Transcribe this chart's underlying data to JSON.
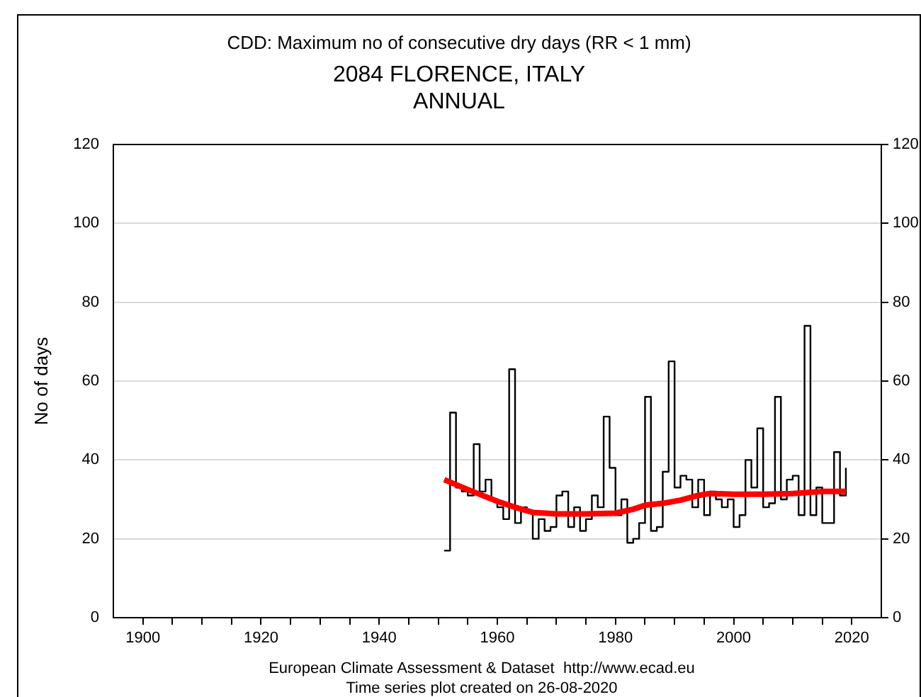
{
  "chart_data": {
    "type": "step",
    "title": "CDD: Maximum no of consecutive dry days (RR < 1 mm)",
    "subtitle": "2084 FLORENCE, ITALY\nANNUAL",
    "ylabel": "No of days",
    "x": [
      1951,
      1952,
      1953,
      1954,
      1955,
      1956,
      1957,
      1958,
      1959,
      1960,
      1961,
      1962,
      1963,
      1964,
      1965,
      1966,
      1967,
      1968,
      1969,
      1970,
      1971,
      1972,
      1973,
      1974,
      1975,
      1976,
      1977,
      1978,
      1979,
      1980,
      1981,
      1982,
      1983,
      1984,
      1985,
      1986,
      1987,
      1988,
      1989,
      1990,
      1991,
      1992,
      1993,
      1994,
      1995,
      1996,
      1997,
      1998,
      1999,
      2000,
      2001,
      2002,
      2003,
      2004,
      2005,
      2006,
      2007,
      2008,
      2009,
      2010,
      2011,
      2012,
      2013,
      2014,
      2015,
      2016,
      2017,
      2018,
      2019
    ],
    "series": [
      {
        "color": "#000000",
        "values": [
          17,
          52,
          33,
          32,
          31,
          44,
          32,
          35,
          30,
          28,
          25,
          63,
          24,
          28,
          27,
          20,
          25,
          22,
          23,
          31,
          32,
          23,
          28,
          22,
          25,
          31,
          28,
          51,
          38,
          26,
          30,
          19,
          20,
          24,
          56,
          22,
          23,
          37,
          65,
          33,
          36,
          35,
          28,
          35,
          26,
          32,
          30,
          28,
          30,
          23,
          26,
          40,
          33,
          48,
          28,
          29,
          56,
          30,
          35,
          36,
          26,
          74,
          26,
          33,
          24,
          24,
          42,
          31,
          38
        ]
      },
      {
        "type": "line",
        "color": "#ff0000",
        "x": [
          1951,
          1955,
          1960,
          1963,
          1966,
          1970,
          1975,
          1980,
          1983,
          1985,
          1988,
          1991,
          1994,
          1996,
          2000,
          2005,
          2010,
          2015,
          2019
        ],
        "values": [
          35,
          32.5,
          29.5,
          28,
          26.7,
          26.3,
          26.3,
          26.5,
          27.5,
          28.5,
          29,
          29.8,
          31,
          31.5,
          31.3,
          31.3,
          31.5,
          32,
          32
        ]
      }
    ],
    "xlim": [
      1895,
      2025
    ],
    "xticks": [
      {
        "value": 1900,
        "label": "1900"
      },
      {
        "value": 1905,
        "label": null
      },
      {
        "value": 1910,
        "label": null
      },
      {
        "value": 1915,
        "label": null
      },
      {
        "value": 1920,
        "label": "1920"
      },
      {
        "value": 1925,
        "label": null
      },
      {
        "value": 1930,
        "label": null
      },
      {
        "value": 1935,
        "label": null
      },
      {
        "value": 1940,
        "label": "1940"
      },
      {
        "value": 1945,
        "label": null
      },
      {
        "value": 1950,
        "label": null
      },
      {
        "value": 1955,
        "label": null
      },
      {
        "value": 1960,
        "label": "1960"
      },
      {
        "value": 1965,
        "label": null
      },
      {
        "value": 1970,
        "label": null
      },
      {
        "value": 1975,
        "label": null
      },
      {
        "value": 1980,
        "label": "1980"
      },
      {
        "value": 1985,
        "label": null
      },
      {
        "value": 1990,
        "label": null
      },
      {
        "value": 1995,
        "label": null
      },
      {
        "value": 2000,
        "label": "2000"
      },
      {
        "value": 2005,
        "label": null
      },
      {
        "value": 2010,
        "label": null
      },
      {
        "value": 2015,
        "label": null
      },
      {
        "value": 2020,
        "label": "2020"
      }
    ],
    "ylim": [
      0,
      120
    ],
    "yticks": [
      0,
      20,
      40,
      60,
      80,
      100,
      120
    ],
    "y2lim": [
      0,
      120
    ],
    "y2ticks": [
      0,
      20,
      40,
      60,
      80,
      100,
      120
    ],
    "grid": "y",
    "marker": "none",
    "annotations": [
      "European Climate Assessment & Dataset  http://www.ecad.eu",
      "Time series plot created on 26-08-2020"
    ]
  }
}
